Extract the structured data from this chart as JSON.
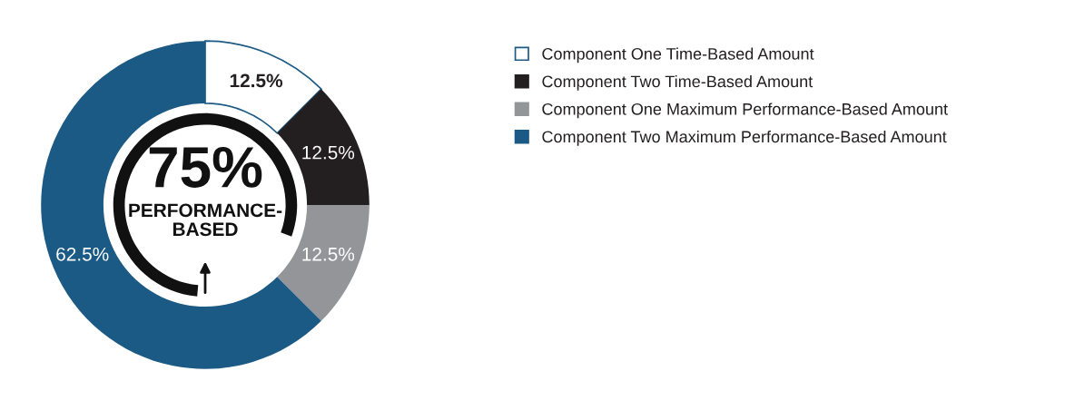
{
  "chart_data": {
    "type": "donut",
    "categories": [
      "Component One Time-Based Amount",
      "Component Two Time-Based Amount",
      "Component One Maximum Performance-Based Amount",
      "Component Two Maximum Performance-Based Amount"
    ],
    "values": [
      12.5,
      12.5,
      12.5,
      62.5
    ],
    "colors": [
      "#ffffff",
      "#231f20",
      "#939598",
      "#1b5a85"
    ],
    "value_labels": [
      "12.5%",
      "12.5%",
      "12.5%",
      "62.5%"
    ],
    "legend": "right",
    "annotations": [
      "75%",
      "PERFORMANCE-\nBASED"
    ]
  }
}
